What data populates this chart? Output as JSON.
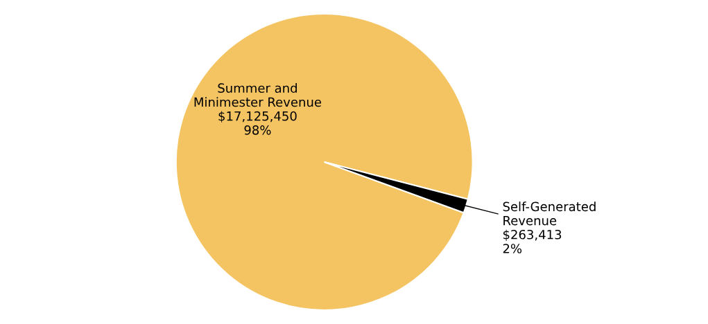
{
  "chart_data": {
    "type": "pie",
    "categories": [
      "Summer and\nMinimester Revenue",
      "Self-Generated\nRevenue"
    ],
    "values": [
      17125450,
      263413
    ],
    "value_labels": [
      "$17,125,450\n98%",
      "$263,413\n2%"
    ],
    "colors": [
      "#f5c462",
      "#000000"
    ]
  }
}
